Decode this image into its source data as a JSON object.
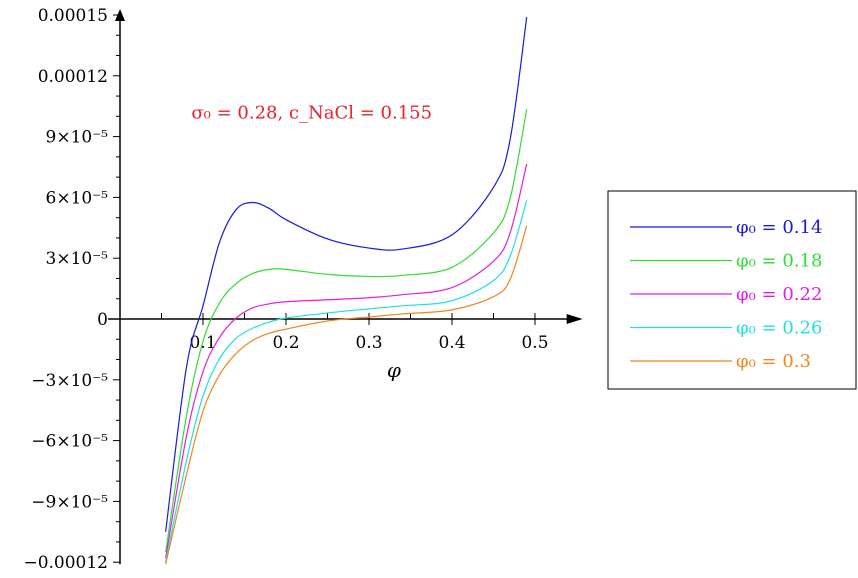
{
  "chart_data": {
    "type": "line",
    "title": "",
    "xlabel": "φ",
    "ylabel": "",
    "xlim": [
      0.0,
      0.5
    ],
    "ylim": [
      -0.00012,
      0.00015
    ],
    "grid": false,
    "legend_position": "right",
    "x_ticks": [
      {
        "value": 0.1,
        "label": "0.1"
      },
      {
        "value": 0.2,
        "label": "0.2"
      },
      {
        "value": 0.3,
        "label": "0.3"
      },
      {
        "value": 0.4,
        "label": "0.4"
      },
      {
        "value": 0.5,
        "label": "0.5"
      }
    ],
    "y_ticks": [
      {
        "value": 0.00015,
        "label": "0.00015"
      },
      {
        "value": 0.00012,
        "label": "0.00012"
      },
      {
        "value": 9e-05,
        "label": "9×10⁻⁵"
      },
      {
        "value": 6e-05,
        "label": "6×10⁻⁵"
      },
      {
        "value": 3e-05,
        "label": "3×10⁻⁵"
      },
      {
        "value": 0,
        "label": "0"
      },
      {
        "value": -3e-05,
        "label": "−3×10⁻⁵"
      },
      {
        "value": -6e-05,
        "label": "−6×10⁻⁵"
      },
      {
        "value": -9e-05,
        "label": "−9×10⁻⁵"
      },
      {
        "value": -0.00012,
        "label": "−0.00012"
      }
    ],
    "annotation": {
      "text": "σ₀ = 0.28, c_NaCl = 0.155",
      "color": "#e8202a"
    },
    "x": [
      0.055,
      0.08,
      0.1,
      0.12,
      0.14,
      0.16,
      0.18,
      0.2,
      0.25,
      0.3,
      0.34,
      0.4,
      0.45,
      0.47,
      0.49
    ],
    "series": [
      {
        "name": "φ₀ = 0.14",
        "color": "#1a1ad6",
        "values": [
          -0.000105,
          -2.4e-05,
          6.5e-06,
          3.8e-05,
          5.4e-05,
          5.75e-05,
          5.45e-05,
          4.9e-05,
          3.95e-05,
          3.5e-05,
          3.45e-05,
          4.15e-05,
          6.5e-05,
          8.85e-05,
          0.000149
        ]
      },
      {
        "name": "φ₀ = 0.18",
        "color": "#33dd33",
        "values": [
          -0.000115,
          -4.8e-05,
          -1.1e-05,
          8e-06,
          1.75e-05,
          2.25e-05,
          2.45e-05,
          2.45e-05,
          2.2e-05,
          2.1e-05,
          2.15e-05,
          2.55e-05,
          4.25e-05,
          5.95e-05,
          0.0001035
        ]
      },
      {
        "name": "φ₀ = 0.22",
        "color": "#e020e0",
        "values": [
          -0.000118,
          -5.8e-05,
          -2.6e-05,
          -9e-06,
          5e-07,
          5.5e-06,
          7.5e-06,
          8.5e-06,
          9.5e-06,
          1.05e-05,
          1.2e-05,
          1.55e-05,
          2.85e-05,
          4.25e-05,
          7.65e-05
        ]
      },
      {
        "name": "φ₀ = 0.26",
        "color": "#22e0e0",
        "values": [
          -0.00012,
          -7e-05,
          -3.8e-05,
          -1.95e-05,
          -9.5e-06,
          -4.5e-06,
          -1.5e-06,
          5e-07,
          3e-06,
          5e-06,
          6.5e-06,
          9e-06,
          1.9e-05,
          3.1e-05,
          5.85e-05
        ]
      },
      {
        "name": "φ₀ = 0.3",
        "color": "#ee8822",
        "values": [
          -0.000121,
          -7.7e-05,
          -4.55e-05,
          -2.75e-05,
          -1.7e-05,
          -1.05e-05,
          -7e-06,
          -5e-06,
          -1e-06,
          1e-06,
          2.5e-06,
          4.5e-06,
          1.1e-05,
          1.95e-05,
          4.6e-05
        ]
      }
    ]
  }
}
